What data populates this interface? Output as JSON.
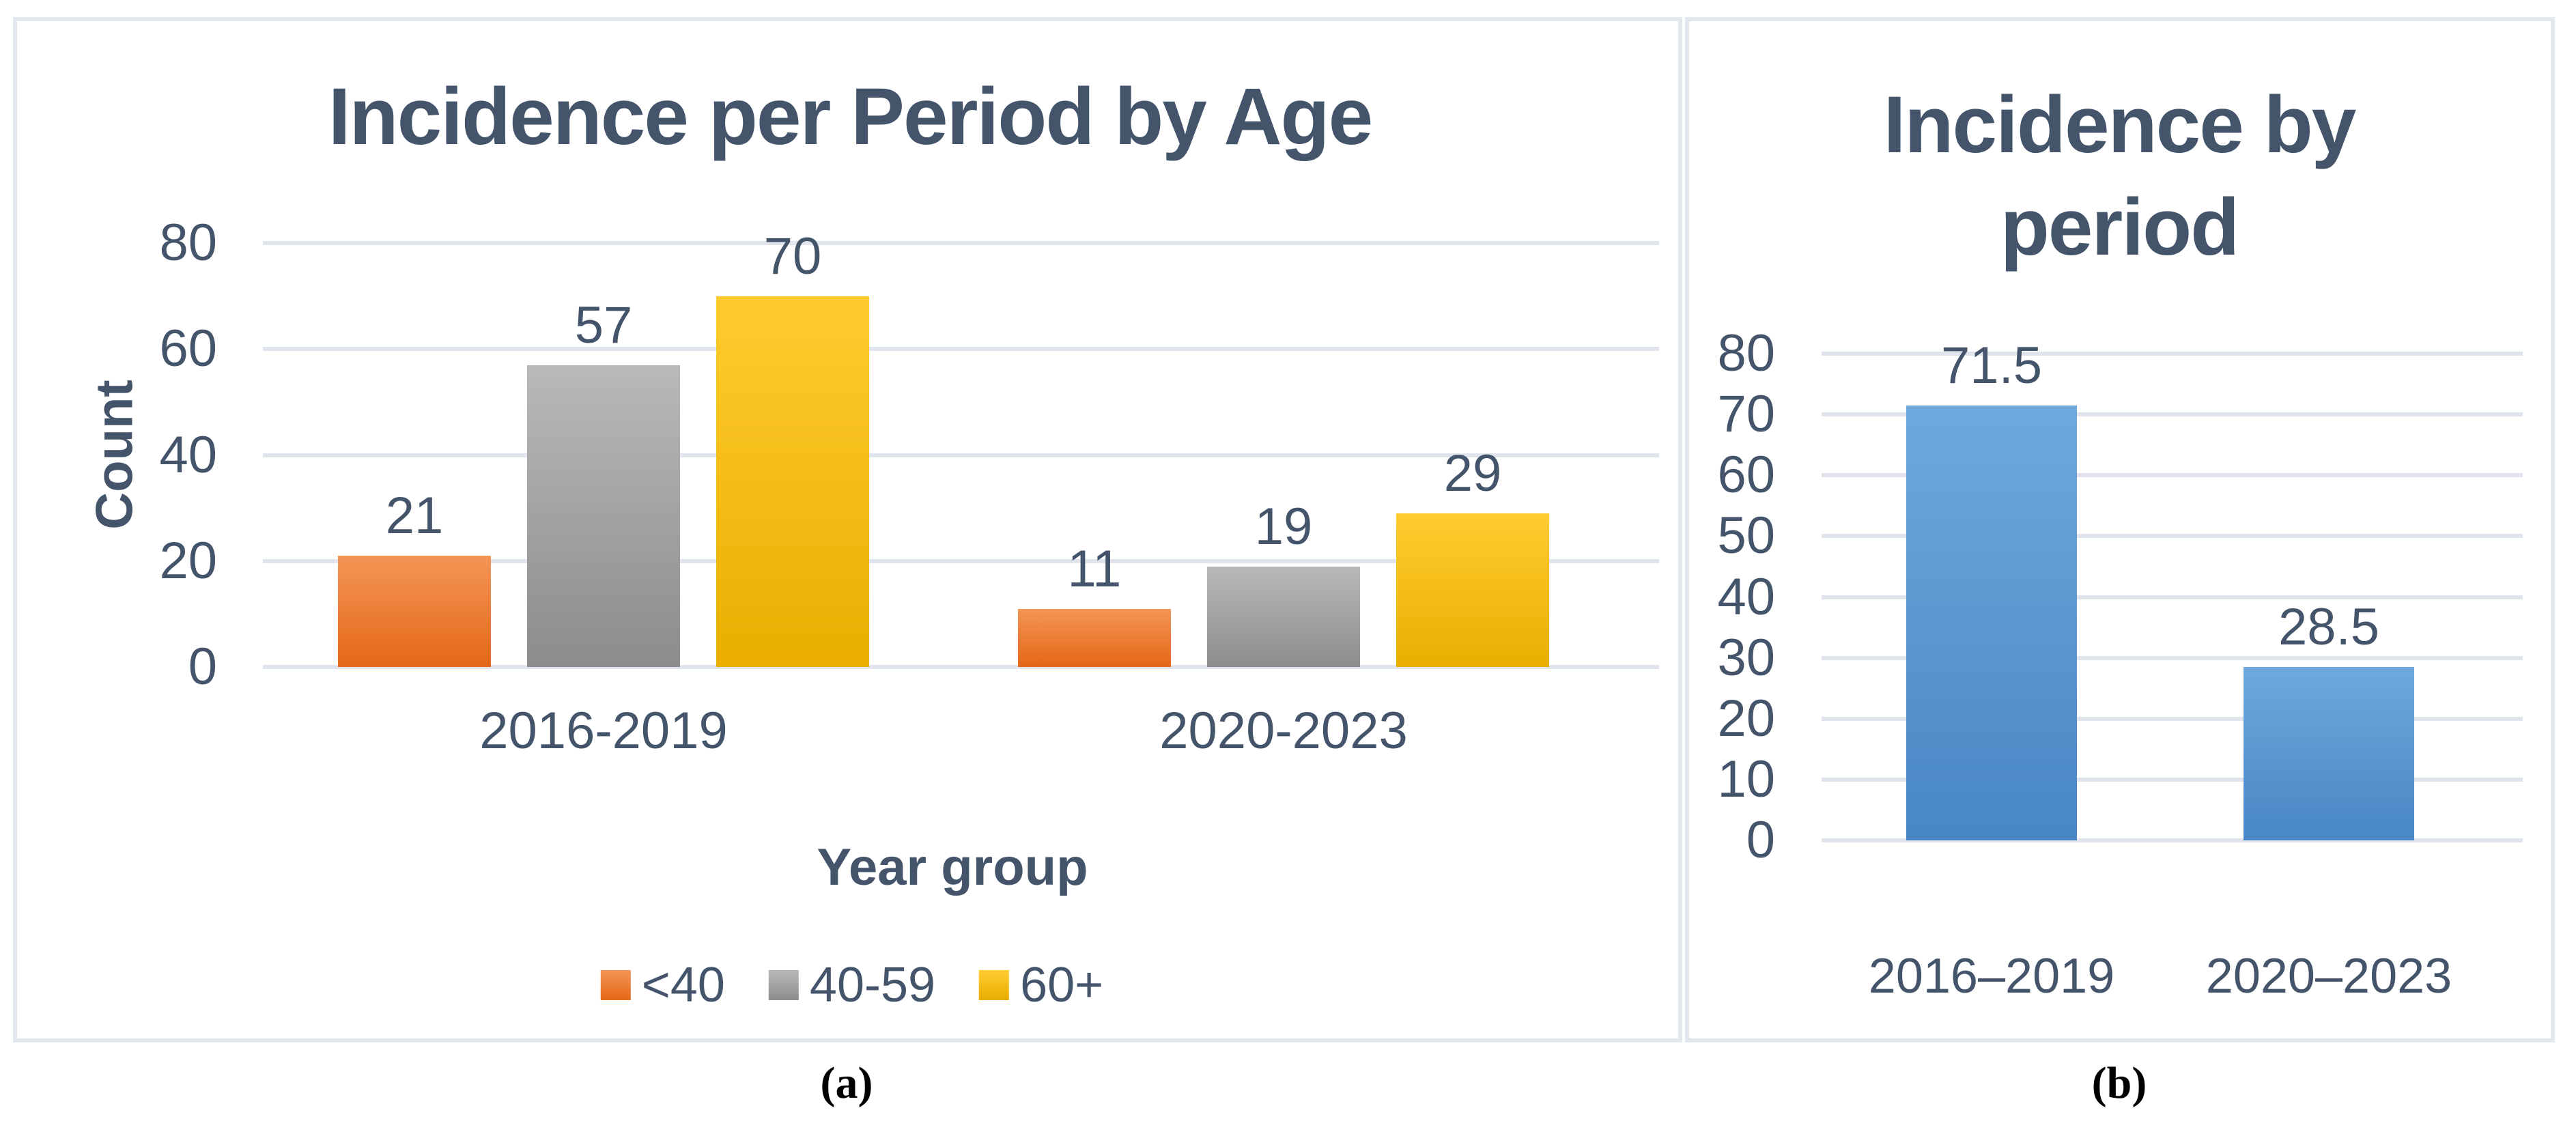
{
  "palette": {
    "text": "#44546A",
    "gridline": "#E0E4EC",
    "panel_border": "#E2E6ED"
  },
  "captions": {
    "a": "(a)",
    "b": "(b)"
  },
  "chart_data": [
    {
      "panel": "a",
      "type": "bar",
      "title": "Incidence per Period by Age",
      "xlabel": "Year group",
      "ylabel": "Count",
      "ylim": [
        0,
        80
      ],
      "yticks": [
        0,
        20,
        40,
        60,
        80
      ],
      "grid": true,
      "legend_position": "bottom",
      "categories": [
        "2016-2019",
        "2020-2023"
      ],
      "series": [
        {
          "name": "<40",
          "values": [
            21,
            11
          ],
          "color_top": "#F49556",
          "color_bottom": "#E56717"
        },
        {
          "name": "40-59",
          "values": [
            57,
            19
          ],
          "color_top": "#B9B9B9",
          "color_bottom": "#8C8C8C"
        },
        {
          "name": "60+",
          "values": [
            70,
            29
          ],
          "color_top": "#FFCB30",
          "color_bottom": "#E9AE00"
        }
      ]
    },
    {
      "panel": "b",
      "type": "bar",
      "title": "Incidence by period",
      "title_lines": [
        "Incidence by",
        "period"
      ],
      "xlabel": "",
      "ylabel": "",
      "ylim": [
        0,
        80
      ],
      "yticks": [
        0,
        10,
        20,
        30,
        40,
        50,
        60,
        70,
        80
      ],
      "grid": true,
      "legend_position": "none",
      "categories": [
        "2016–2019",
        "2020–2023"
      ],
      "series": [
        {
          "name": "Incidence",
          "values": [
            71.5,
            28.5
          ],
          "color_top": "#6FA8DC",
          "color_bottom": "#4886C5"
        }
      ]
    }
  ]
}
